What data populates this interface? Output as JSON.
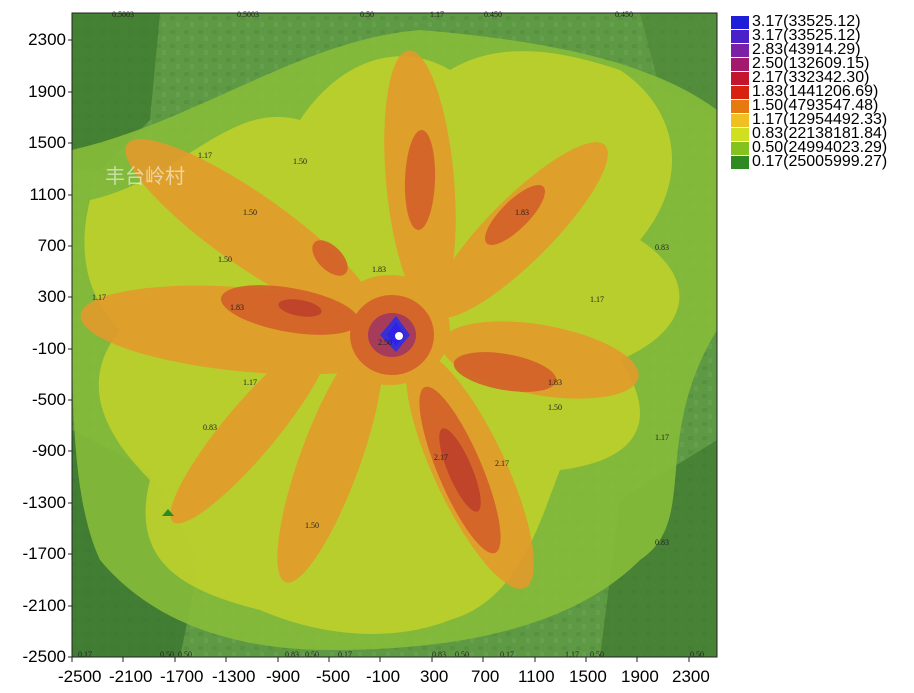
{
  "colors": {
    "plot_background": "#5b8f3c",
    "axis": "#222222"
  },
  "y_axis_ticks": [
    "2300",
    "1900",
    "1500",
    "1100",
    "700",
    "300",
    "-100",
    "-500",
    "-900",
    "-1300",
    "-1700",
    "-2100",
    "-2500"
  ],
  "x_axis_ticks": [
    "-2500",
    "-2100",
    "-1700",
    "-1300",
    "-900",
    "-500",
    "-100",
    "300",
    "700",
    "1100",
    "1500",
    "1900",
    "2300"
  ],
  "map_label": "丰台岭村",
  "legend": [
    {
      "label": "3.17(33525.12)",
      "color": "#1f1fd9"
    },
    {
      "label": "3.17(33525.12)",
      "color": "#4b20c8"
    },
    {
      "label": "2.83(43914.29)",
      "color": "#7a1fa6"
    },
    {
      "label": "2.50(132609.15)",
      "color": "#a3196e"
    },
    {
      "label": "2.17(332342.30)",
      "color": "#c3152e"
    },
    {
      "label": "1.83(1441206.69)",
      "color": "#d8220f"
    },
    {
      "label": "1.50(4793547.48)",
      "color": "#e67a10"
    },
    {
      "label": "1.17(12954492.33)",
      "color": "#f0c020"
    },
    {
      "label": "0.83(22138181.84)",
      "color": "#cfe021"
    },
    {
      "label": "0.50(24994023.29)",
      "color": "#86c21d"
    },
    {
      "label": "0.17(25005999.27)",
      "color": "#2f8a23"
    }
  ],
  "contour_labels": [
    "1.17",
    "1.50",
    "1.83",
    "2.17",
    "2.50",
    "0.83",
    "1.17",
    "1.50",
    "1.83",
    "1.50",
    "1.17",
    "0.83",
    "1.83",
    "1.50",
    "1.17",
    "1.83",
    "2.17",
    "1.50",
    "1.17",
    "0.83"
  ],
  "top_edge_labels": [
    "0.5003",
    "0.5003",
    "0.50",
    "1.17",
    "0.450",
    "0.450"
  ],
  "bottom_edge_labels": [
    "0.17",
    "0.50",
    "0.50",
    "0.83",
    "0.50",
    "0.17",
    "0.83",
    "0.50",
    "0.17",
    "1.17",
    "0.50",
    "0.50"
  ]
}
